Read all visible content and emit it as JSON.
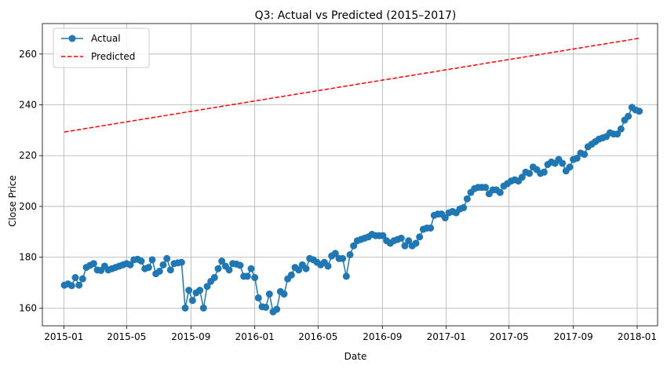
{
  "chart_data": {
    "type": "line",
    "title": "Q3: Actual vs Predicted (2015–2017)",
    "xlabel": "Date",
    "ylabel": "Close Price",
    "xlim": [
      "2014-11-21",
      "2018-02-09"
    ],
    "ylim": [
      153,
      272
    ],
    "x_ticks": [
      "2015-01",
      "2015-05",
      "2015-09",
      "2016-01",
      "2016-05",
      "2016-09",
      "2017-01",
      "2017-05",
      "2017-09",
      "2018-01"
    ],
    "y_ticks": [
      160,
      180,
      200,
      220,
      240,
      260
    ],
    "grid": true,
    "legend_position": "top-left",
    "series": [
      {
        "name": "Actual",
        "style": "solid line with circle markers",
        "color": "#1f77b4",
        "points": [
          [
            "2015-01-02",
            169.0
          ],
          [
            "2015-01-09",
            169.5
          ],
          [
            "2015-01-16",
            168.8
          ],
          [
            "2015-01-23",
            172.0
          ],
          [
            "2015-01-30",
            169.0
          ],
          [
            "2015-02-06",
            171.5
          ],
          [
            "2015-02-13",
            176.0
          ],
          [
            "2015-02-20",
            176.8
          ],
          [
            "2015-02-27",
            177.5
          ],
          [
            "2015-03-06",
            175.0
          ],
          [
            "2015-03-13",
            174.8
          ],
          [
            "2015-03-20",
            176.5
          ],
          [
            "2015-03-27",
            175.0
          ],
          [
            "2015-04-03",
            175.5
          ],
          [
            "2015-04-10",
            176.0
          ],
          [
            "2015-04-17",
            176.5
          ],
          [
            "2015-04-24",
            177.0
          ],
          [
            "2015-05-01",
            177.5
          ],
          [
            "2015-05-08",
            177.0
          ],
          [
            "2015-05-15",
            179.0
          ],
          [
            "2015-05-22",
            179.2
          ],
          [
            "2015-05-29",
            178.5
          ],
          [
            "2015-06-05",
            175.5
          ],
          [
            "2015-06-12",
            176.0
          ],
          [
            "2015-06-19",
            179.0
          ],
          [
            "2015-06-26",
            173.5
          ],
          [
            "2015-07-03",
            174.5
          ],
          [
            "2015-07-10",
            177.0
          ],
          [
            "2015-07-17",
            179.5
          ],
          [
            "2015-07-24",
            175.0
          ],
          [
            "2015-07-31",
            177.5
          ],
          [
            "2015-08-07",
            177.8
          ],
          [
            "2015-08-14",
            178.0
          ],
          [
            "2015-08-21",
            160.0
          ],
          [
            "2015-08-28",
            167.0
          ],
          [
            "2015-09-04",
            163.0
          ],
          [
            "2015-09-11",
            166.0
          ],
          [
            "2015-09-18",
            167.0
          ],
          [
            "2015-09-25",
            160.0
          ],
          [
            "2015-10-02",
            168.5
          ],
          [
            "2015-10-09",
            170.5
          ],
          [
            "2015-10-16",
            172.0
          ],
          [
            "2015-10-23",
            175.5
          ],
          [
            "2015-10-30",
            178.5
          ],
          [
            "2015-11-06",
            176.5
          ],
          [
            "2015-11-13",
            175.0
          ],
          [
            "2015-11-20",
            177.5
          ],
          [
            "2015-11-27",
            177.3
          ],
          [
            "2015-12-04",
            176.8
          ],
          [
            "2015-12-11",
            172.5
          ],
          [
            "2015-12-18",
            172.5
          ],
          [
            "2015-12-25",
            175.5
          ],
          [
            "2016-01-01",
            172.0
          ],
          [
            "2016-01-08",
            164.0
          ],
          [
            "2016-01-15",
            160.5
          ],
          [
            "2016-01-22",
            160.3
          ],
          [
            "2016-01-29",
            165.5
          ],
          [
            "2016-02-05",
            158.5
          ],
          [
            "2016-02-12",
            159.5
          ],
          [
            "2016-02-19",
            166.5
          ],
          [
            "2016-02-26",
            165.5
          ],
          [
            "2016-03-04",
            171.5
          ],
          [
            "2016-03-11",
            173.0
          ],
          [
            "2016-03-18",
            176.0
          ],
          [
            "2016-03-25",
            175.0
          ],
          [
            "2016-04-01",
            177.0
          ],
          [
            "2016-04-08",
            175.5
          ],
          [
            "2016-04-15",
            179.5
          ],
          [
            "2016-04-22",
            179.0
          ],
          [
            "2016-04-29",
            178.0
          ],
          [
            "2016-05-06",
            177.0
          ],
          [
            "2016-05-13",
            178.0
          ],
          [
            "2016-05-20",
            176.5
          ],
          [
            "2016-05-27",
            180.5
          ],
          [
            "2016-06-03",
            181.5
          ],
          [
            "2016-06-10",
            179.5
          ],
          [
            "2016-06-17",
            179.5
          ],
          [
            "2016-06-24",
            172.5
          ],
          [
            "2016-07-01",
            181.0
          ],
          [
            "2016-07-08",
            184.5
          ],
          [
            "2016-07-15",
            186.5
          ],
          [
            "2016-07-22",
            187.0
          ],
          [
            "2016-07-29",
            187.5
          ],
          [
            "2016-08-05",
            188.0
          ],
          [
            "2016-08-12",
            189.0
          ],
          [
            "2016-08-19",
            188.5
          ],
          [
            "2016-08-26",
            188.5
          ],
          [
            "2016-09-02",
            188.5
          ],
          [
            "2016-09-09",
            186.5
          ],
          [
            "2016-09-16",
            185.5
          ],
          [
            "2016-09-23",
            186.5
          ],
          [
            "2016-09-30",
            187.0
          ],
          [
            "2016-10-07",
            187.5
          ],
          [
            "2016-10-14",
            184.5
          ],
          [
            "2016-10-21",
            186.5
          ],
          [
            "2016-10-28",
            184.5
          ],
          [
            "2016-11-04",
            185.5
          ],
          [
            "2016-11-11",
            188.0
          ],
          [
            "2016-11-18",
            191.0
          ],
          [
            "2016-11-25",
            191.5
          ],
          [
            "2016-12-02",
            191.5
          ],
          [
            "2016-12-09",
            196.5
          ],
          [
            "2016-12-16",
            197.0
          ],
          [
            "2016-12-23",
            197.0
          ],
          [
            "2016-12-30",
            195.5
          ],
          [
            "2017-01-06",
            197.5
          ],
          [
            "2017-01-13",
            198.0
          ],
          [
            "2017-01-20",
            197.5
          ],
          [
            "2017-01-27",
            199.0
          ],
          [
            "2017-02-03",
            199.5
          ],
          [
            "2017-02-10",
            203.0
          ],
          [
            "2017-02-17",
            205.5
          ],
          [
            "2017-02-24",
            207.0
          ],
          [
            "2017-03-03",
            207.5
          ],
          [
            "2017-03-10",
            207.5
          ],
          [
            "2017-03-17",
            207.5
          ],
          [
            "2017-03-24",
            205.0
          ],
          [
            "2017-03-31",
            206.5
          ],
          [
            "2017-04-07",
            206.5
          ],
          [
            "2017-04-14",
            205.5
          ],
          [
            "2017-04-21",
            208.0
          ],
          [
            "2017-04-28",
            209.0
          ],
          [
            "2017-05-05",
            210.0
          ],
          [
            "2017-05-12",
            210.5
          ],
          [
            "2017-05-19",
            210.0
          ],
          [
            "2017-05-26",
            211.5
          ],
          [
            "2017-06-02",
            213.5
          ],
          [
            "2017-06-09",
            213.0
          ],
          [
            "2017-06-16",
            215.5
          ],
          [
            "2017-06-23",
            214.5
          ],
          [
            "2017-06-30",
            213.0
          ],
          [
            "2017-07-07",
            213.5
          ],
          [
            "2017-07-14",
            216.5
          ],
          [
            "2017-07-21",
            217.5
          ],
          [
            "2017-07-28",
            217.0
          ],
          [
            "2017-08-04",
            218.5
          ],
          [
            "2017-08-11",
            217.0
          ],
          [
            "2017-08-18",
            214.0
          ],
          [
            "2017-08-25",
            215.5
          ],
          [
            "2017-09-01",
            218.5
          ],
          [
            "2017-09-08",
            219.0
          ],
          [
            "2017-09-15",
            221.0
          ],
          [
            "2017-09-22",
            220.5
          ],
          [
            "2017-09-29",
            223.5
          ],
          [
            "2017-10-06",
            224.5
          ],
          [
            "2017-10-13",
            225.5
          ],
          [
            "2017-10-20",
            226.5
          ],
          [
            "2017-10-27",
            227.0
          ],
          [
            "2017-11-03",
            227.5
          ],
          [
            "2017-11-10",
            229.0
          ],
          [
            "2017-11-17",
            228.5
          ],
          [
            "2017-11-24",
            228.5
          ],
          [
            "2017-12-01",
            230.5
          ],
          [
            "2017-12-08",
            234.0
          ],
          [
            "2017-12-15",
            235.5
          ],
          [
            "2017-12-22",
            239.0
          ],
          [
            "2017-12-29",
            238.0
          ],
          [
            "2018-01-05",
            237.5
          ]
        ]
      },
      {
        "name": "Predicted",
        "style": "dashed line",
        "color": "#ff0000",
        "points": [
          [
            "2015-01-02",
            229.3
          ],
          [
            "2018-01-05",
            266.2
          ]
        ]
      }
    ]
  }
}
